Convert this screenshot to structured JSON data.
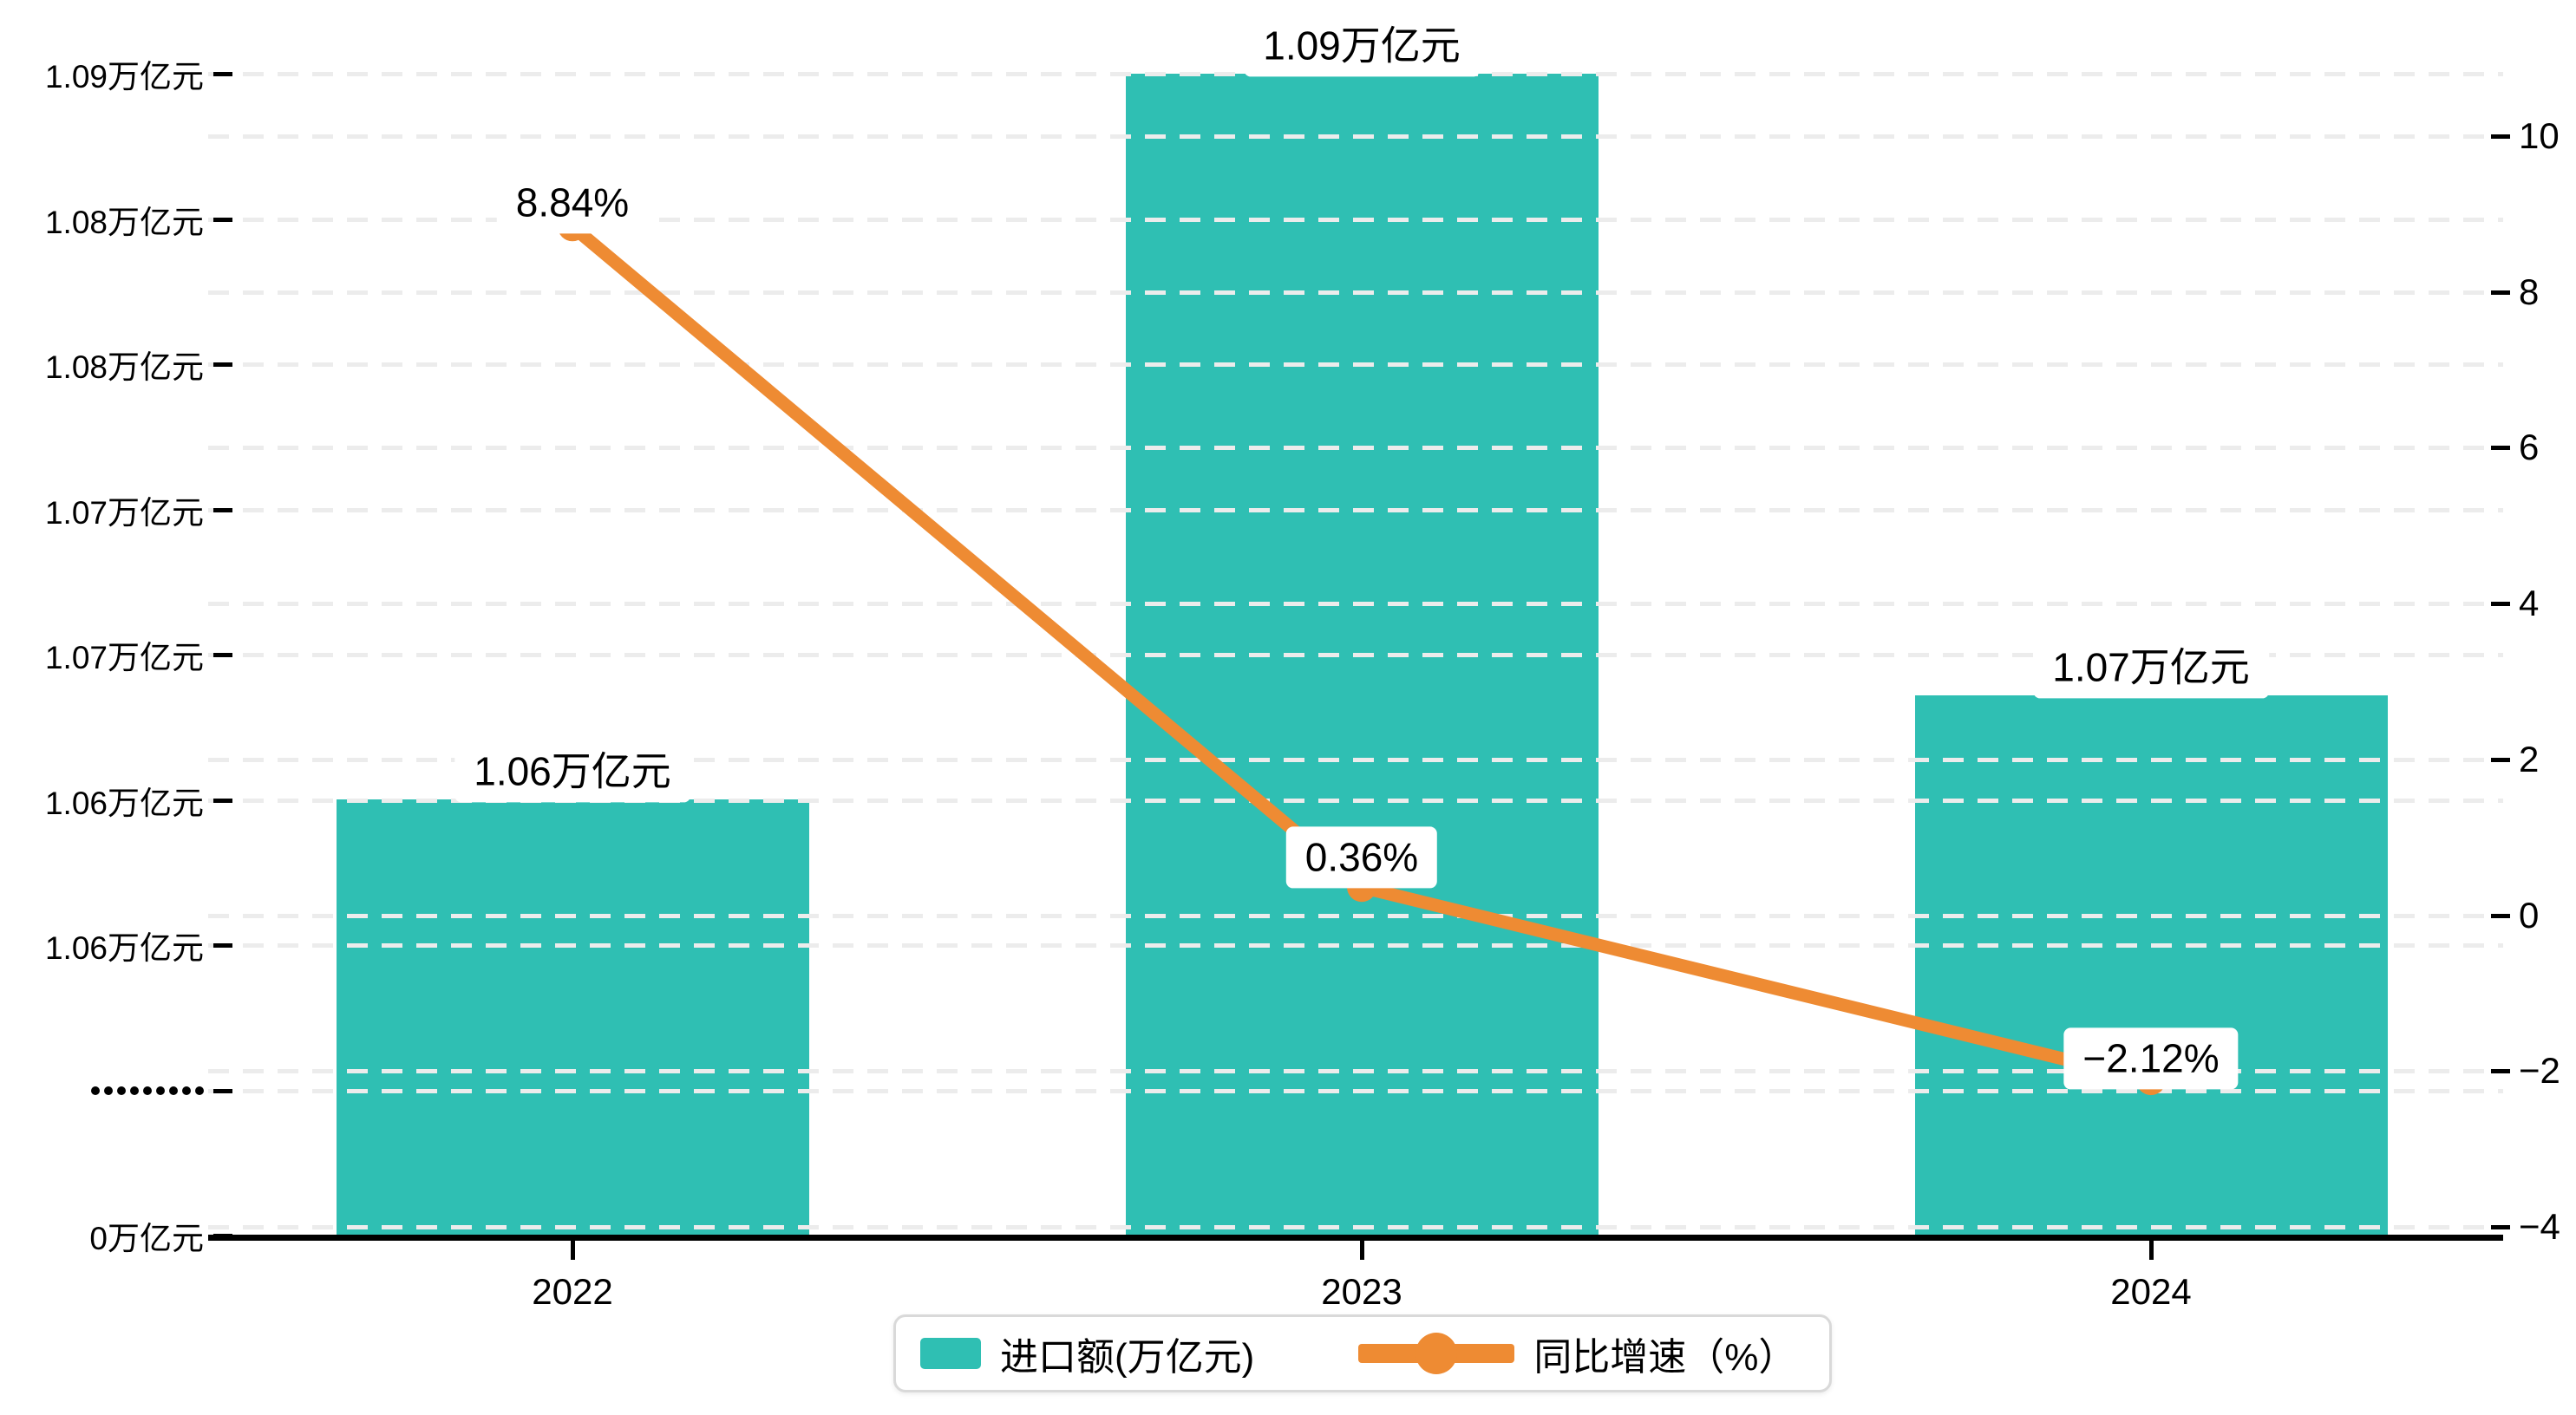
{
  "chart_data": {
    "type": "combo_bar_line",
    "categories": [
      "2022",
      "2023",
      "2024"
    ],
    "series": [
      {
        "name": "进口额(万亿元)",
        "type": "bar",
        "values": [
          1.06,
          1.09,
          1.07
        ],
        "labels": [
          "1.06万亿元",
          "1.09万亿元",
          "1.07万亿元"
        ],
        "color": "#2fbfb3"
      },
      {
        "name": "同比增速（%）",
        "type": "line",
        "values": [
          8.84,
          0.36,
          -2.12
        ],
        "labels": [
          "8.84%",
          "0.36%",
          "−2.12%"
        ],
        "color": "#ee8b33"
      }
    ],
    "left_axis": {
      "tick_labels_top_to_bottom": [
        "1.09万亿元",
        "1.08万亿元",
        "1.08万亿元",
        "1.07万亿元",
        "1.07万亿元",
        "1.06万亿元",
        "1.06万亿元",
        "·········",
        "0万亿元"
      ],
      "has_axis_break": true
    },
    "right_axis": {
      "tick_labels_top_to_bottom": [
        "10",
        "8",
        "6",
        "4",
        "2",
        "0",
        "−2",
        "−4"
      ],
      "max": 10,
      "min": -4
    },
    "grid": true,
    "legend_position": "bottom-center",
    "colors": {
      "bar": "#2fbfb3",
      "line": "#ee8b33",
      "grid": "#ececec",
      "text": "#000000",
      "legend_border": "#d9d9d9",
      "annotation_bg": "#ffffff"
    }
  },
  "legend": {
    "items": [
      {
        "label": "进口额(万亿元)",
        "marker": "bar-swatch"
      },
      {
        "label": "同比增速（%）",
        "marker": "line-dot"
      }
    ]
  }
}
